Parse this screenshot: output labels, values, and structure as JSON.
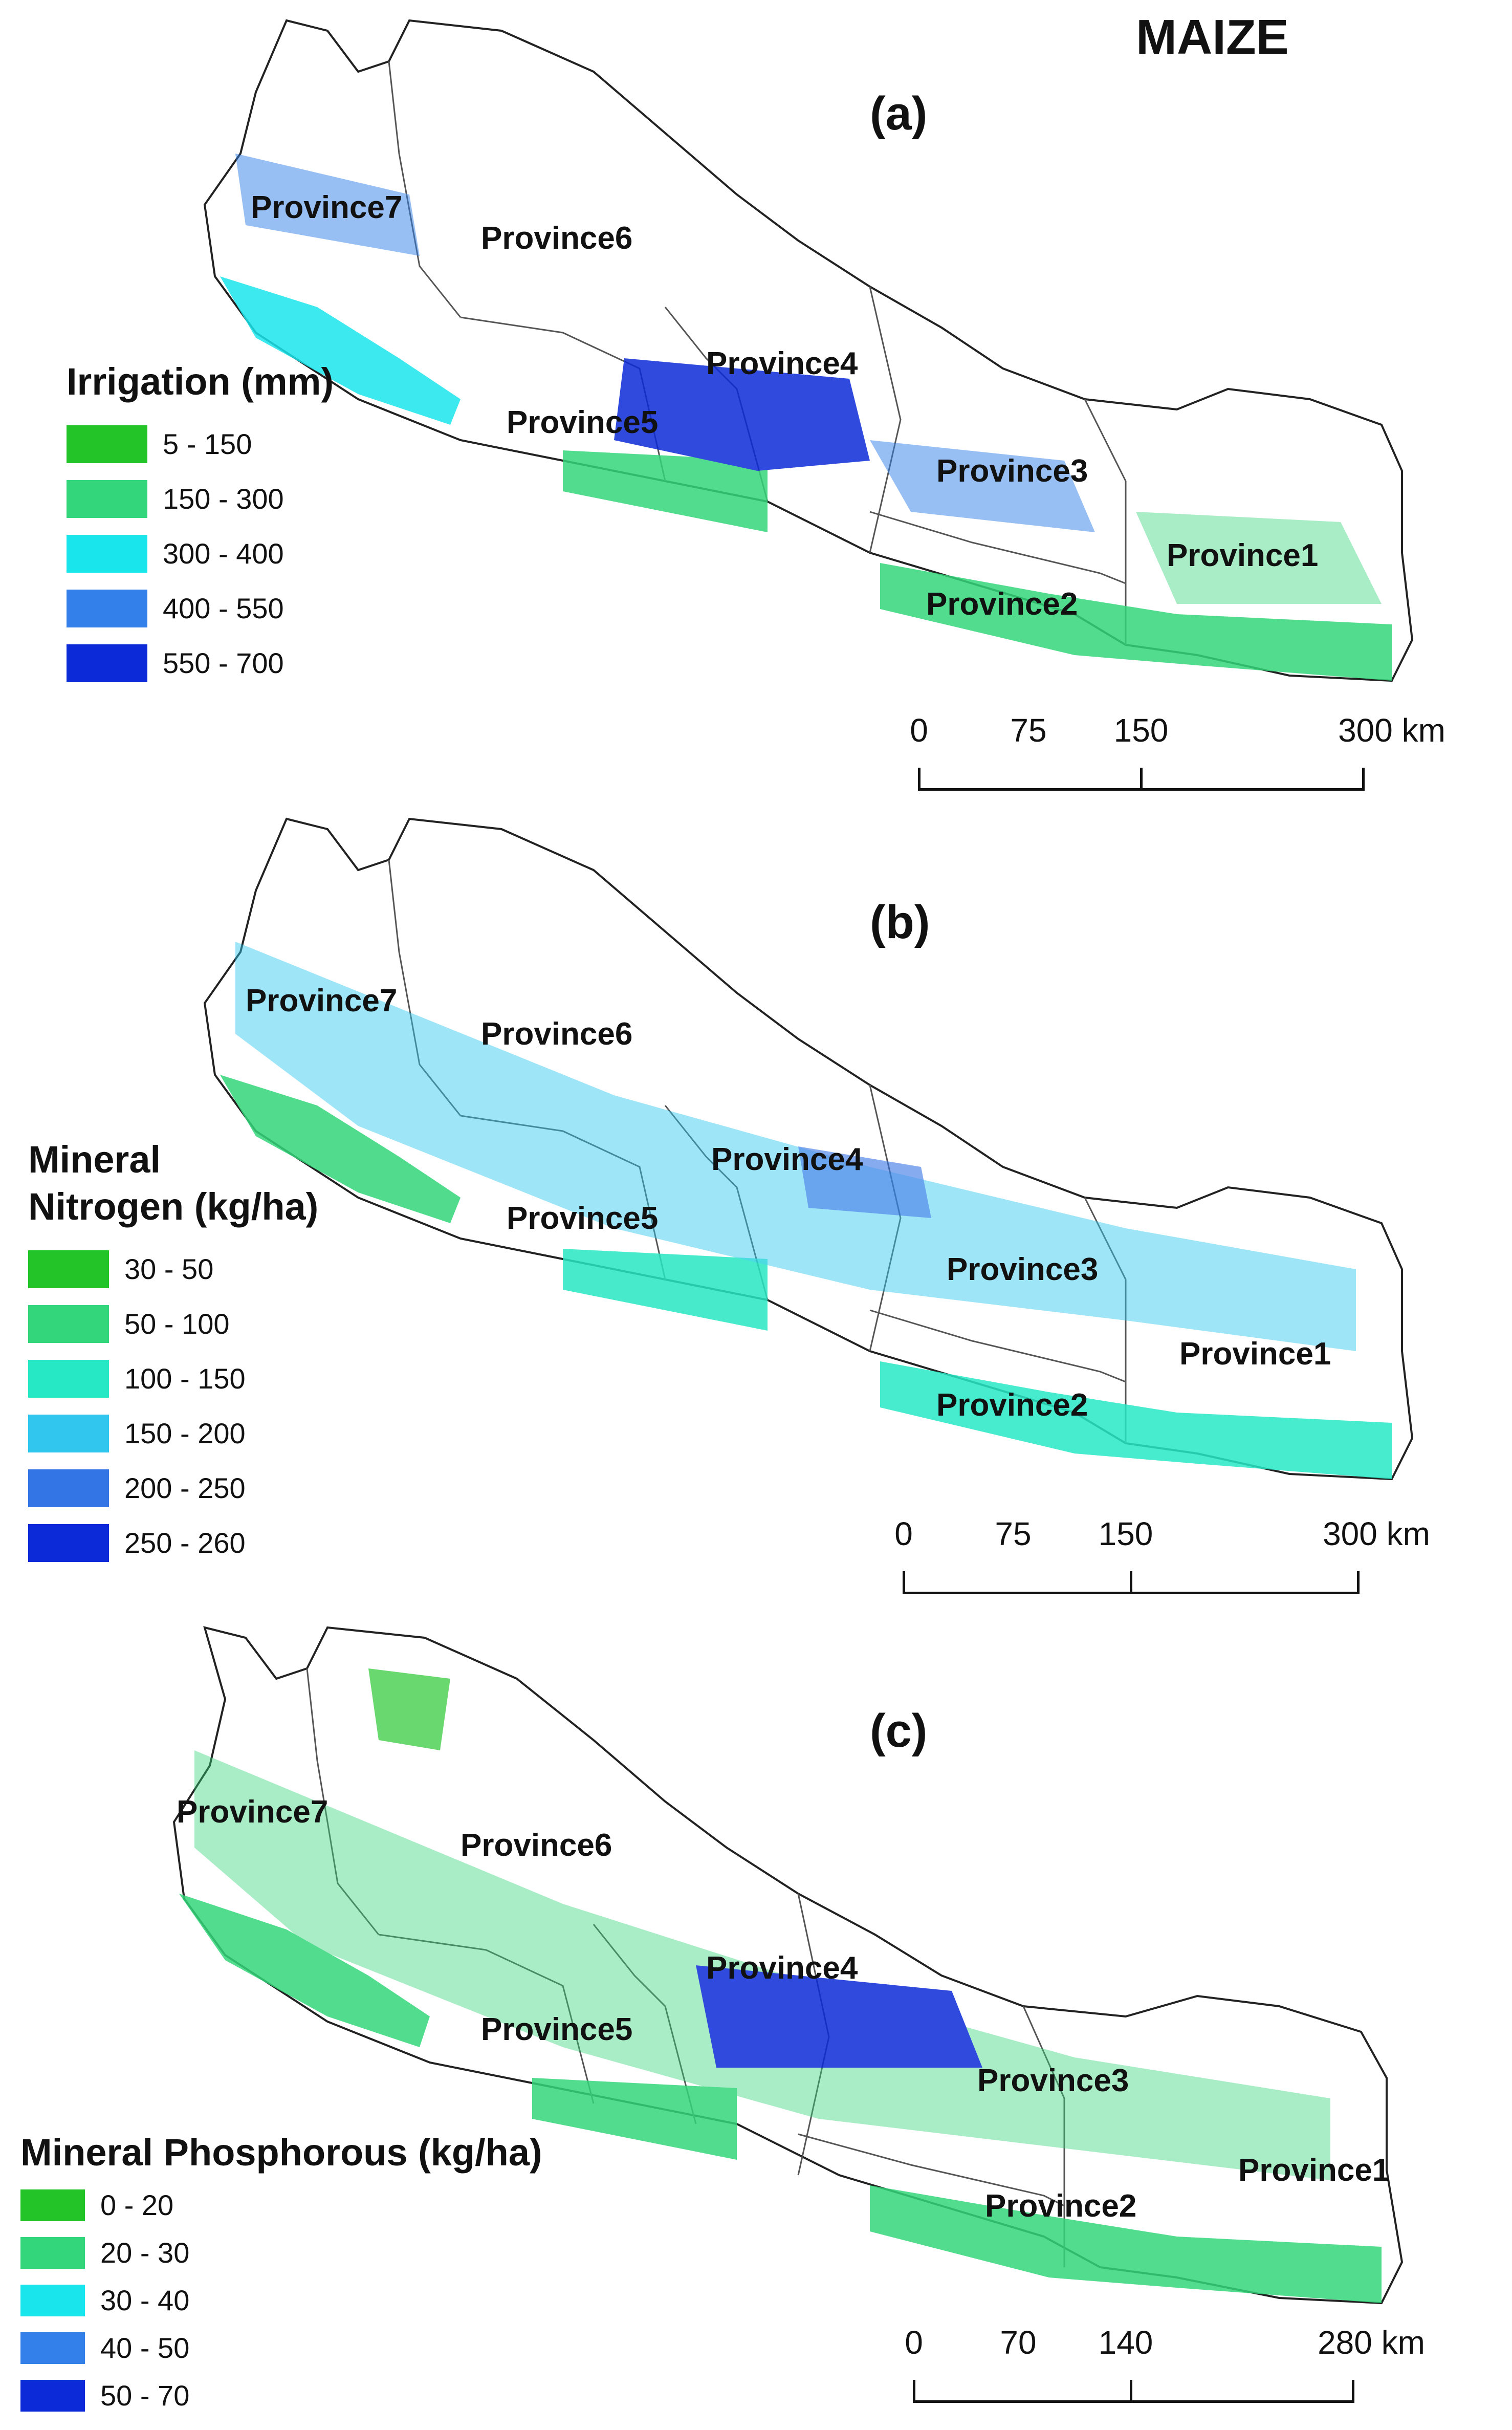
{
  "title": "MAIZE",
  "panels": [
    {
      "label": "(a)",
      "legend": {
        "title_lines": [
          "Irrigation (mm)",
          ""
        ],
        "items": [
          {
            "label": "5 - 150",
            "color": "#22c428"
          },
          {
            "label": "150 - 300",
            "color": "#33d67a"
          },
          {
            "label": "300 - 400",
            "color": "#18e6ec"
          },
          {
            "label": "400 - 550",
            "color": "#3480ea"
          },
          {
            "label": "550 - 700",
            "color": "#0c2ad8"
          }
        ]
      },
      "provinces": [
        "Province7",
        "Province6",
        "Province4",
        "Province5",
        "Province3",
        "Province1",
        "Province2"
      ],
      "scale": {
        "ticks": [
          "0",
          "75",
          "150",
          "300 km"
        ]
      }
    },
    {
      "label": "(b)",
      "legend": {
        "title_lines": [
          "Mineral",
          "Nitrogen (kg/ha)"
        ],
        "items": [
          {
            "label": "30 - 50",
            "color": "#22c428"
          },
          {
            "label": "50 - 100",
            "color": "#33d67a"
          },
          {
            "label": "100 - 150",
            "color": "#27e8c4"
          },
          {
            "label": "150 - 200",
            "color": "#30c6ee"
          },
          {
            "label": "200 - 250",
            "color": "#3475e6"
          },
          {
            "label": "250 - 260",
            "color": "#0c2ad8"
          }
        ]
      },
      "provinces": [
        "Province7",
        "Province6",
        "Province4",
        "Province5",
        "Province3",
        "Province1",
        "Province2"
      ],
      "scale": {
        "ticks": [
          "0",
          "75",
          "150",
          "300 km"
        ]
      }
    },
    {
      "label": "(c)",
      "legend": {
        "title_lines": [
          "Mineral Phosphorous (kg/ha)",
          ""
        ],
        "items": [
          {
            "label": "0 - 20",
            "color": "#22c428"
          },
          {
            "label": "20 - 30",
            "color": "#33d67a"
          },
          {
            "label": "30 - 40",
            "color": "#18e6ec"
          },
          {
            "label": "40 - 50",
            "color": "#3480ea"
          },
          {
            "label": "50 - 70",
            "color": "#0c2ad8"
          }
        ]
      },
      "provinces": [
        "Province7",
        "Province6",
        "Province4",
        "Province5",
        "Province3",
        "Province1",
        "Province2"
      ],
      "scale": {
        "ticks": [
          "0",
          "70",
          "140",
          "280 km"
        ]
      }
    }
  ]
}
